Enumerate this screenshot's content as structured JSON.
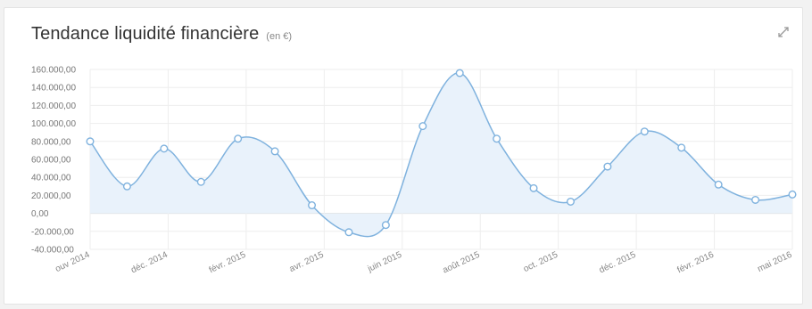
{
  "widget": {
    "title": "Tendance liquidité financière",
    "unit": "(en €)",
    "expand_icon": "expand-arrows-icon"
  },
  "colors": {
    "line": "#7fb2de",
    "fill": "#e9f2fb",
    "point_fill": "#ffffff",
    "grid": "#eeeeee",
    "zero_line": "#d8d8d8"
  },
  "chart_data": {
    "type": "area",
    "title": "Tendance liquidité financière",
    "unit": "(en €)",
    "ylim": [
      -40000,
      160000
    ],
    "y_ticks": [
      {
        "value": 160000,
        "label": "160.000,00"
      },
      {
        "value": 140000,
        "label": "140.000,00"
      },
      {
        "value": 120000,
        "label": "120.000,00"
      },
      {
        "value": 100000,
        "label": "100.000,00"
      },
      {
        "value": 80000,
        "label": "80.000,00"
      },
      {
        "value": 60000,
        "label": "60.000,00"
      },
      {
        "value": 40000,
        "label": "40.000,00"
      },
      {
        "value": 20000,
        "label": "20.000,00"
      },
      {
        "value": 0,
        "label": "0,00"
      },
      {
        "value": -20000,
        "label": "-20.000,00"
      },
      {
        "value": -40000,
        "label": "-40.000,00"
      }
    ],
    "x_labels": [
      "ouv 2014",
      "déc. 2014",
      "févr. 2015",
      "avr. 2015",
      "juin 2015",
      "août 2015",
      "oct. 2015",
      "déc. 2015",
      "févr. 2016",
      "mai 2016"
    ],
    "grid": true,
    "values": [
      80000,
      30000,
      72000,
      35000,
      83000,
      69000,
      9000,
      -21000,
      -13000,
      97000,
      156000,
      83000,
      28000,
      13000,
      52000,
      91000,
      73000,
      32000,
      15000,
      21000
    ]
  }
}
